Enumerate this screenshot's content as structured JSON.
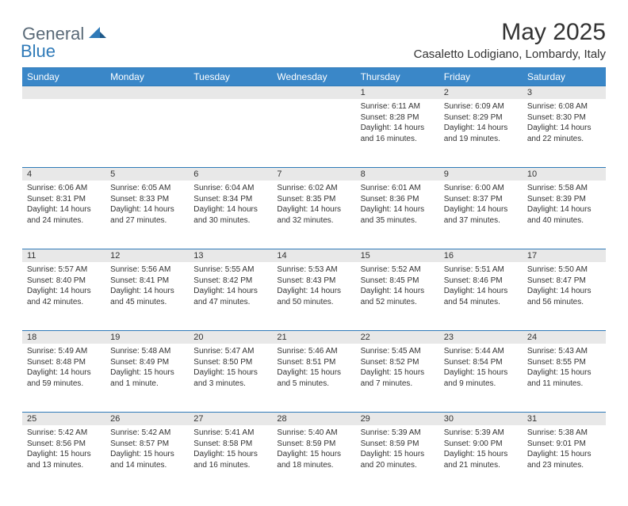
{
  "logo": {
    "text_general": "General",
    "text_blue": "Blue"
  },
  "title": "May 2025",
  "location": "Casaletto Lodigiano, Lombardy, Italy",
  "colors": {
    "header_bg": "#3a87c8",
    "header_text": "#ffffff",
    "daynum_bg": "#e8e8e8",
    "border": "#2f7ab8",
    "text": "#333333",
    "logo_gray": "#5a6a78",
    "logo_blue": "#2f7ab8",
    "page_bg": "#ffffff"
  },
  "typography": {
    "title_fontsize": 30,
    "location_fontsize": 15,
    "weekday_fontsize": 12,
    "daynum_fontsize": 11,
    "body_fontsize": 10,
    "font_family": "Arial"
  },
  "weekdays": [
    "Sunday",
    "Monday",
    "Tuesday",
    "Wednesday",
    "Thursday",
    "Friday",
    "Saturday"
  ],
  "weeks": [
    [
      null,
      null,
      null,
      null,
      {
        "n": "1",
        "sr": "Sunrise: 6:11 AM",
        "ss": "Sunset: 8:28 PM",
        "dl": "Daylight: 14 hours and 16 minutes."
      },
      {
        "n": "2",
        "sr": "Sunrise: 6:09 AM",
        "ss": "Sunset: 8:29 PM",
        "dl": "Daylight: 14 hours and 19 minutes."
      },
      {
        "n": "3",
        "sr": "Sunrise: 6:08 AM",
        "ss": "Sunset: 8:30 PM",
        "dl": "Daylight: 14 hours and 22 minutes."
      }
    ],
    [
      {
        "n": "4",
        "sr": "Sunrise: 6:06 AM",
        "ss": "Sunset: 8:31 PM",
        "dl": "Daylight: 14 hours and 24 minutes."
      },
      {
        "n": "5",
        "sr": "Sunrise: 6:05 AM",
        "ss": "Sunset: 8:33 PM",
        "dl": "Daylight: 14 hours and 27 minutes."
      },
      {
        "n": "6",
        "sr": "Sunrise: 6:04 AM",
        "ss": "Sunset: 8:34 PM",
        "dl": "Daylight: 14 hours and 30 minutes."
      },
      {
        "n": "7",
        "sr": "Sunrise: 6:02 AM",
        "ss": "Sunset: 8:35 PM",
        "dl": "Daylight: 14 hours and 32 minutes."
      },
      {
        "n": "8",
        "sr": "Sunrise: 6:01 AM",
        "ss": "Sunset: 8:36 PM",
        "dl": "Daylight: 14 hours and 35 minutes."
      },
      {
        "n": "9",
        "sr": "Sunrise: 6:00 AM",
        "ss": "Sunset: 8:37 PM",
        "dl": "Daylight: 14 hours and 37 minutes."
      },
      {
        "n": "10",
        "sr": "Sunrise: 5:58 AM",
        "ss": "Sunset: 8:39 PM",
        "dl": "Daylight: 14 hours and 40 minutes."
      }
    ],
    [
      {
        "n": "11",
        "sr": "Sunrise: 5:57 AM",
        "ss": "Sunset: 8:40 PM",
        "dl": "Daylight: 14 hours and 42 minutes."
      },
      {
        "n": "12",
        "sr": "Sunrise: 5:56 AM",
        "ss": "Sunset: 8:41 PM",
        "dl": "Daylight: 14 hours and 45 minutes."
      },
      {
        "n": "13",
        "sr": "Sunrise: 5:55 AM",
        "ss": "Sunset: 8:42 PM",
        "dl": "Daylight: 14 hours and 47 minutes."
      },
      {
        "n": "14",
        "sr": "Sunrise: 5:53 AM",
        "ss": "Sunset: 8:43 PM",
        "dl": "Daylight: 14 hours and 50 minutes."
      },
      {
        "n": "15",
        "sr": "Sunrise: 5:52 AM",
        "ss": "Sunset: 8:45 PM",
        "dl": "Daylight: 14 hours and 52 minutes."
      },
      {
        "n": "16",
        "sr": "Sunrise: 5:51 AM",
        "ss": "Sunset: 8:46 PM",
        "dl": "Daylight: 14 hours and 54 minutes."
      },
      {
        "n": "17",
        "sr": "Sunrise: 5:50 AM",
        "ss": "Sunset: 8:47 PM",
        "dl": "Daylight: 14 hours and 56 minutes."
      }
    ],
    [
      {
        "n": "18",
        "sr": "Sunrise: 5:49 AM",
        "ss": "Sunset: 8:48 PM",
        "dl": "Daylight: 14 hours and 59 minutes."
      },
      {
        "n": "19",
        "sr": "Sunrise: 5:48 AM",
        "ss": "Sunset: 8:49 PM",
        "dl": "Daylight: 15 hours and 1 minute."
      },
      {
        "n": "20",
        "sr": "Sunrise: 5:47 AM",
        "ss": "Sunset: 8:50 PM",
        "dl": "Daylight: 15 hours and 3 minutes."
      },
      {
        "n": "21",
        "sr": "Sunrise: 5:46 AM",
        "ss": "Sunset: 8:51 PM",
        "dl": "Daylight: 15 hours and 5 minutes."
      },
      {
        "n": "22",
        "sr": "Sunrise: 5:45 AM",
        "ss": "Sunset: 8:52 PM",
        "dl": "Daylight: 15 hours and 7 minutes."
      },
      {
        "n": "23",
        "sr": "Sunrise: 5:44 AM",
        "ss": "Sunset: 8:54 PM",
        "dl": "Daylight: 15 hours and 9 minutes."
      },
      {
        "n": "24",
        "sr": "Sunrise: 5:43 AM",
        "ss": "Sunset: 8:55 PM",
        "dl": "Daylight: 15 hours and 11 minutes."
      }
    ],
    [
      {
        "n": "25",
        "sr": "Sunrise: 5:42 AM",
        "ss": "Sunset: 8:56 PM",
        "dl": "Daylight: 15 hours and 13 minutes."
      },
      {
        "n": "26",
        "sr": "Sunrise: 5:42 AM",
        "ss": "Sunset: 8:57 PM",
        "dl": "Daylight: 15 hours and 14 minutes."
      },
      {
        "n": "27",
        "sr": "Sunrise: 5:41 AM",
        "ss": "Sunset: 8:58 PM",
        "dl": "Daylight: 15 hours and 16 minutes."
      },
      {
        "n": "28",
        "sr": "Sunrise: 5:40 AM",
        "ss": "Sunset: 8:59 PM",
        "dl": "Daylight: 15 hours and 18 minutes."
      },
      {
        "n": "29",
        "sr": "Sunrise: 5:39 AM",
        "ss": "Sunset: 8:59 PM",
        "dl": "Daylight: 15 hours and 20 minutes."
      },
      {
        "n": "30",
        "sr": "Sunrise: 5:39 AM",
        "ss": "Sunset: 9:00 PM",
        "dl": "Daylight: 15 hours and 21 minutes."
      },
      {
        "n": "31",
        "sr": "Sunrise: 5:38 AM",
        "ss": "Sunset: 9:01 PM",
        "dl": "Daylight: 15 hours and 23 minutes."
      }
    ]
  ]
}
